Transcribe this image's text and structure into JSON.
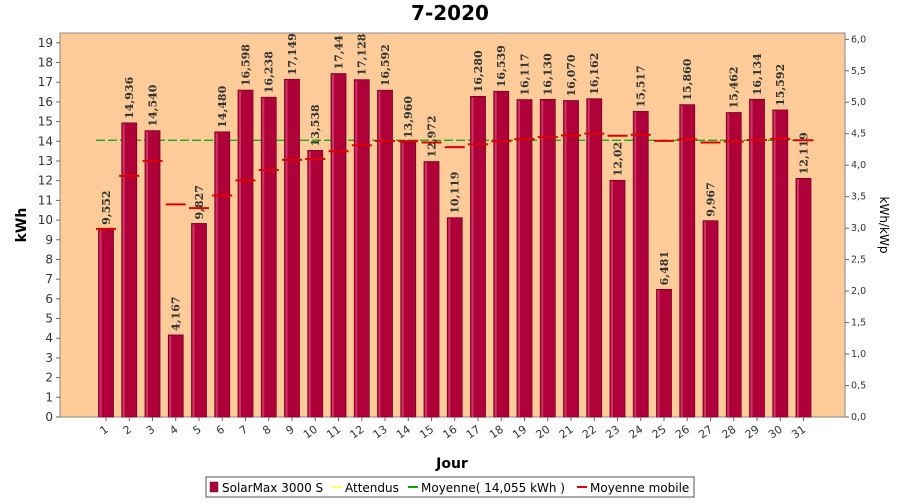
{
  "chart_data": {
    "type": "bar",
    "title": "7-2020",
    "xlabel": "Jour",
    "ylabel": "kWh",
    "ylabel_right": "kWh/kWp",
    "ylim": [
      0,
      19.5
    ],
    "ylim_right": [
      0,
      6.1
    ],
    "yticks": [
      "0",
      "1",
      "2",
      "3",
      "4",
      "5",
      "6",
      "7",
      "8",
      "9",
      "10",
      "11",
      "12",
      "13",
      "14",
      "15",
      "16",
      "17",
      "18",
      "19"
    ],
    "yticks_right": [
      "0,0",
      "0,5",
      "1,0",
      "1,5",
      "2,0",
      "2,5",
      "3,0",
      "3,5",
      "4,0",
      "4,5",
      "5,0",
      "5,5",
      "6,0"
    ],
    "categories": [
      "1",
      "2",
      "3",
      "4",
      "5",
      "6",
      "7",
      "8",
      "9",
      "10",
      "11",
      "12",
      "13",
      "14",
      "15",
      "16",
      "17",
      "18",
      "19",
      "20",
      "21",
      "22",
      "23",
      "24",
      "25",
      "26",
      "27",
      "28",
      "29",
      "30",
      "31"
    ],
    "series": [
      {
        "name": "SolarMax 3000 S",
        "values": [
          9.552,
          14.936,
          14.54,
          4.167,
          9.827,
          14.48,
          16.598,
          16.238,
          17.149,
          13.538,
          17.44,
          17.128,
          16.592,
          13.96,
          12.972,
          10.119,
          16.28,
          16.539,
          16.117,
          16.13,
          16.07,
          16.162,
          12.02,
          15.517,
          6.481,
          15.86,
          9.967,
          15.462,
          16.134,
          15.592,
          12.119
        ],
        "labels": [
          "9,552",
          "14,936",
          "14,540",
          "4,167",
          "9,827",
          "14,480",
          "16,598",
          "16,238",
          "17,149",
          "13,538",
          "17,44",
          "17,128",
          "16,592",
          "13,960",
          "12,972",
          "10,119",
          "16,280",
          "16,539",
          "16,117",
          "16,130",
          "16,070",
          "16,162",
          "12,02",
          "15,517",
          "6,481",
          "15,860",
          "9,967",
          "15,462",
          "16,134",
          "15,592",
          "12,119"
        ],
        "color": "#b0003a"
      },
      {
        "name": "Attendus",
        "color": "#ffff66"
      },
      {
        "name": "Moyenne( 14,055 kWh )",
        "value": 14.055,
        "color": "#00aa00"
      },
      {
        "name": "Moyenne mobile",
        "values": [
          9.552,
          12.244,
          13.009,
          10.799,
          10.604,
          11.25,
          12.014,
          12.542,
          13.054,
          13.102,
          13.496,
          13.799,
          14.014,
          14.01,
          13.941,
          13.702,
          13.853,
          14.002,
          14.113,
          14.214,
          14.302,
          14.387,
          14.285,
          14.336,
          14.021,
          14.092,
          13.939,
          13.993,
          14.067,
          14.121,
          14.056
        ],
        "color": "#dd0000"
      }
    ],
    "legend_placement": "bottom",
    "grid": false,
    "background": "#ffcc99"
  }
}
